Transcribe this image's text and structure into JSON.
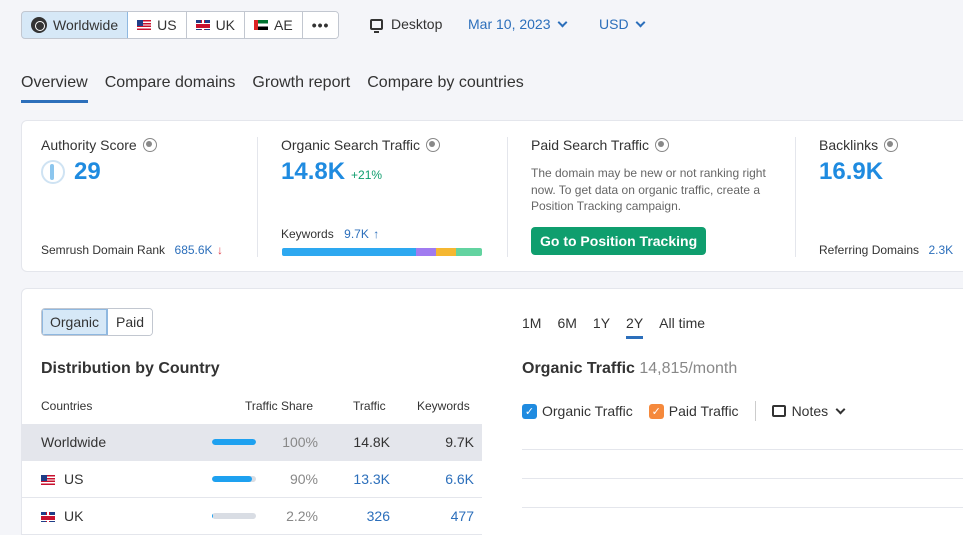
{
  "database_selector": {
    "items": [
      {
        "label": "Worldwide",
        "icon": "globe-icon",
        "active": true
      },
      {
        "label": "US",
        "icon": "us-flag-icon"
      },
      {
        "label": "UK",
        "icon": "uk-flag-icon"
      },
      {
        "label": "AE",
        "icon": "ae-flag-icon"
      }
    ],
    "more_label": "•••"
  },
  "device": {
    "label": "Desktop",
    "icon": "desktop-icon"
  },
  "date": {
    "label": "Mar 10, 2023"
  },
  "currency": {
    "label": "USD"
  },
  "tabs": [
    {
      "label": "Overview",
      "active": true
    },
    {
      "label": "Compare domains"
    },
    {
      "label": "Growth report"
    },
    {
      "label": "Compare by countries"
    }
  ],
  "summary": {
    "authority": {
      "title": "Authority Score",
      "value": "29",
      "rank_label": "Semrush Domain Rank",
      "rank_value": "685.6K",
      "rank_trend": "↓"
    },
    "organic": {
      "title": "Organic Search Traffic",
      "value": "14.8K",
      "change": "+21%",
      "keywords_label": "Keywords",
      "keywords_value": "9.7K",
      "keywords_trend": "↑",
      "keyword_segments": [
        {
          "share": 67,
          "color": "#2da8f0"
        },
        {
          "share": 10,
          "color": "#a07bf0"
        },
        {
          "share": 10,
          "color": "#f5b731"
        },
        {
          "share": 13,
          "color": "#63d3a0"
        }
      ]
    },
    "paid": {
      "title": "Paid Search Traffic",
      "text": "The domain may be new or not ranking right now. To get data on organic traffic, create a Position Tracking campaign.",
      "button": "Go to Position Tracking"
    },
    "backlinks": {
      "title": "Backlinks",
      "value": "16.9K",
      "ref_label": "Referring Domains",
      "ref_value": "2.3K"
    }
  },
  "distribution": {
    "toggle": [
      {
        "label": "Organic",
        "active": true
      },
      {
        "label": "Paid"
      }
    ],
    "title": "Distribution by Country",
    "columns": [
      "Countries",
      "Traffic Share",
      "Traffic",
      "Keywords"
    ],
    "rows": [
      {
        "country": "Worldwide",
        "flag": "none",
        "share_pct": 100,
        "share": "100%",
        "traffic": "14.8K",
        "keywords": "9.7K",
        "highlight": true
      },
      {
        "country": "US",
        "flag": "us",
        "share_pct": 90,
        "share": "90%",
        "traffic": "13.3K",
        "keywords": "6.6K"
      },
      {
        "country": "UK",
        "flag": "uk",
        "share_pct": 2.2,
        "share": "2.2%",
        "traffic": "326",
        "keywords": "477"
      }
    ]
  },
  "traffic_chart": {
    "periods": [
      {
        "label": "1M"
      },
      {
        "label": "6M"
      },
      {
        "label": "1Y"
      },
      {
        "label": "2Y",
        "active": true
      },
      {
        "label": "All time"
      }
    ],
    "title": "Organic Traffic",
    "subtitle": "14,815/month",
    "legend": [
      {
        "label": "Organic Traffic",
        "color": "#1f8be0",
        "checked": true
      },
      {
        "label": "Paid Traffic",
        "color": "#f5893c",
        "checked": true
      }
    ],
    "notes_label": "Notes"
  }
}
